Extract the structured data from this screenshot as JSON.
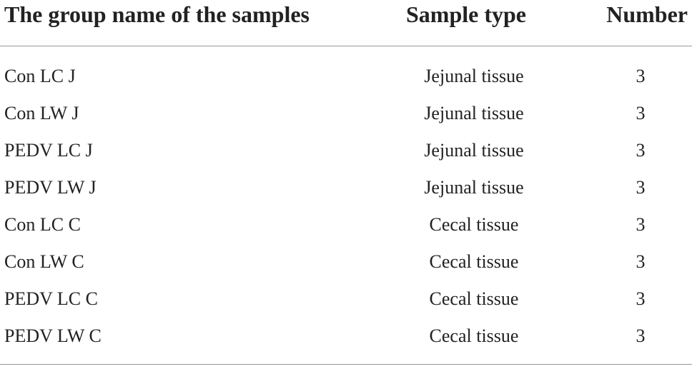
{
  "table": {
    "header": [
      "The group name of the samples",
      "Sample type",
      "Number"
    ],
    "rows": [
      [
        "Con LC J",
        "Jejunal tissue",
        3
      ],
      [
        "Con LW J",
        "Jejunal tissue",
        3
      ],
      [
        "PEDV LC J",
        "Jejunal tissue",
        3
      ],
      [
        "PEDV LW J",
        "Jejunal tissue",
        3
      ],
      [
        "Con LC C",
        "Cecal tissue",
        3
      ],
      [
        "Con LW C",
        "Cecal tissue",
        3
      ],
      [
        "PEDV LC C",
        "Cecal tissue",
        3
      ],
      [
        "PEDV LW C",
        "Cecal tissue",
        3
      ]
    ]
  }
}
